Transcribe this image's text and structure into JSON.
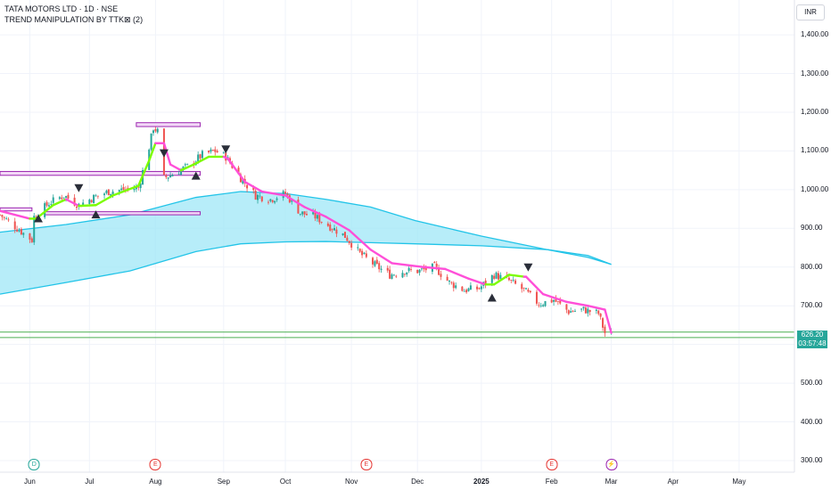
{
  "header": {
    "symbol_line": "TATA MOTORS LTD · 1D · NSE",
    "indicator_line": "TREND MANIPULATION BY TTK⊠ (2)"
  },
  "currency_button": "INR",
  "price_tag": {
    "price": "626.20",
    "countdown": "03:57:48"
  },
  "colors": {
    "up_candle": "#26a69a",
    "down_candle": "#ef5350",
    "trend_up": "#7cfc00",
    "trend_down": "#ff4fd8",
    "cloud_fill": "#9fe7f7",
    "cloud_line": "#22c4e8",
    "box_border": "#9c27b0",
    "support_line": "#4caf50"
  },
  "event_markers": [
    {
      "letter": "D",
      "x": "2024-06-05",
      "color": "#26a69a"
    },
    {
      "letter": "E",
      "x": "2024-08-01",
      "color": "#e53935"
    },
    {
      "letter": "E",
      "x": "2024-11-08",
      "color": "#e53935"
    },
    {
      "letter": "E",
      "x": "2025-02-03",
      "color": "#e53935"
    },
    {
      "letter": "⚡",
      "x": "2025-03-03",
      "color": "#9c27b0"
    }
  ],
  "chart_data": {
    "type": "candlestick",
    "title": "TATA MOTORS LTD · 1D · NSE",
    "ylim": [
      270,
      1490
    ],
    "y_ticks": [
      "300.00",
      "400.00",
      "500.00",
      "600.00",
      "700.00",
      "800.00",
      "900.00",
      "1,000.00",
      "1,100.00",
      "1,200.00",
      "1,300.00",
      "1,400.00"
    ],
    "x_ticks": [
      {
        "label": "Jun",
        "x": "2024-06-03"
      },
      {
        "label": "Jul",
        "x": "2024-07-01"
      },
      {
        "label": "Aug",
        "x": "2024-08-01"
      },
      {
        "label": "Sep",
        "x": "2024-09-02"
      },
      {
        "label": "Oct",
        "x": "2024-10-01"
      },
      {
        "label": "Nov",
        "x": "2024-11-01"
      },
      {
        "label": "Dec",
        "x": "2024-12-02"
      },
      {
        "label": "2025",
        "x": "2025-01-01",
        "bold": true
      },
      {
        "label": "Feb",
        "x": "2025-02-03"
      },
      {
        "label": "Mar",
        "x": "2025-03-03"
      },
      {
        "label": "Apr",
        "x": "2025-04-01"
      },
      {
        "label": "May",
        "x": "2025-05-02"
      }
    ],
    "x_range": [
      "2024-05-20",
      "2025-05-28"
    ],
    "price_anchors": [
      [
        "2024-05-20",
        935
      ],
      [
        "2024-06-04",
        870
      ],
      [
        "2024-06-05",
        930
      ],
      [
        "2024-06-12",
        965
      ],
      [
        "2024-06-19",
        985
      ],
      [
        "2024-06-26",
        960
      ],
      [
        "2024-07-03",
        980
      ],
      [
        "2024-07-10",
        995
      ],
      [
        "2024-07-17",
        1000
      ],
      [
        "2024-07-24",
        1005
      ],
      [
        "2024-07-29",
        1110
      ],
      [
        "2024-07-31",
        1160
      ],
      [
        "2024-08-02",
        1150
      ],
      [
        "2024-08-05",
        1030
      ],
      [
        "2024-08-09",
        1040
      ],
      [
        "2024-08-16",
        1060
      ],
      [
        "2024-08-23",
        1090
      ],
      [
        "2024-08-29",
        1100
      ],
      [
        "2024-09-03",
        1085
      ],
      [
        "2024-09-10",
        1030
      ],
      [
        "2024-09-17",
        985
      ],
      [
        "2024-09-24",
        975
      ],
      [
        "2024-10-01",
        990
      ],
      [
        "2024-10-08",
        940
      ],
      [
        "2024-10-15",
        930
      ],
      [
        "2024-10-22",
        905
      ],
      [
        "2024-10-29",
        880
      ],
      [
        "2024-11-05",
        835
      ],
      [
        "2024-11-12",
        805
      ],
      [
        "2024-11-19",
        780
      ],
      [
        "2024-11-26",
        790
      ],
      [
        "2024-12-03",
        790
      ],
      [
        "2024-12-10",
        800
      ],
      [
        "2024-12-17",
        760
      ],
      [
        "2024-12-24",
        740
      ],
      [
        "2024-12-31",
        745
      ],
      [
        "2025-01-07",
        780
      ],
      [
        "2025-01-14",
        765
      ],
      [
        "2025-01-21",
        740
      ],
      [
        "2025-01-28",
        705
      ],
      [
        "2025-02-04",
        715
      ],
      [
        "2025-02-11",
        685
      ],
      [
        "2025-02-18",
        690
      ],
      [
        "2025-02-25",
        680
      ],
      [
        "2025-02-28",
        630
      ],
      [
        "2025-03-03",
        626
      ]
    ],
    "cloud_upper": [
      [
        "2024-05-20",
        890
      ],
      [
        "2024-06-20",
        910
      ],
      [
        "2024-07-20",
        935
      ],
      [
        "2024-08-20",
        980
      ],
      [
        "2024-09-10",
        995
      ],
      [
        "2024-10-01",
        990
      ],
      [
        "2024-10-20",
        975
      ],
      [
        "2024-11-10",
        955
      ],
      [
        "2024-12-01",
        920
      ],
      [
        "2025-01-01",
        880
      ],
      [
        "2025-02-01",
        845
      ],
      [
        "2025-02-20",
        830
      ],
      [
        "2025-03-03",
        807
      ]
    ],
    "cloud_lower": [
      [
        "2024-05-20",
        730
      ],
      [
        "2024-06-20",
        760
      ],
      [
        "2024-07-20",
        790
      ],
      [
        "2024-08-20",
        840
      ],
      [
        "2024-09-10",
        860
      ],
      [
        "2024-10-01",
        865
      ],
      [
        "2024-10-20",
        866
      ],
      [
        "2024-11-10",
        863
      ],
      [
        "2024-12-01",
        860
      ],
      [
        "2025-01-01",
        855
      ],
      [
        "2025-02-01",
        845
      ],
      [
        "2025-02-20",
        825
      ],
      [
        "2025-03-03",
        807
      ]
    ],
    "trend_line": [
      [
        "2024-05-20",
        945,
        "down"
      ],
      [
        "2024-06-03",
        925,
        "down"
      ],
      [
        "2024-06-06",
        925,
        "up"
      ],
      [
        "2024-06-14",
        960,
        "up"
      ],
      [
        "2024-06-20",
        975,
        "up"
      ],
      [
        "2024-06-26",
        958,
        "down"
      ],
      [
        "2024-07-04",
        960,
        "up"
      ],
      [
        "2024-07-12",
        985,
        "up"
      ],
      [
        "2024-07-24",
        1010,
        "up"
      ],
      [
        "2024-07-29",
        1075,
        "up"
      ],
      [
        "2024-08-01",
        1120,
        "up"
      ],
      [
        "2024-08-05",
        1120,
        "down"
      ],
      [
        "2024-08-08",
        1065,
        "down"
      ],
      [
        "2024-08-13",
        1050,
        "down"
      ],
      [
        "2024-08-19",
        1065,
        "up"
      ],
      [
        "2024-08-26",
        1085,
        "up"
      ],
      [
        "2024-09-02",
        1085,
        "up"
      ],
      [
        "2024-09-04",
        1080,
        "down"
      ],
      [
        "2024-09-12",
        1020,
        "down"
      ],
      [
        "2024-09-20",
        995,
        "down"
      ],
      [
        "2024-10-01",
        985,
        "down"
      ],
      [
        "2024-10-10",
        955,
        "down"
      ],
      [
        "2024-10-20",
        930,
        "down"
      ],
      [
        "2024-10-31",
        895,
        "down"
      ],
      [
        "2024-11-10",
        845,
        "down"
      ],
      [
        "2024-11-20",
        810,
        "down"
      ],
      [
        "2024-12-05",
        800,
        "down"
      ],
      [
        "2024-12-15",
        795,
        "down"
      ],
      [
        "2024-12-26",
        770,
        "down"
      ],
      [
        "2025-01-03",
        755,
        "down"
      ],
      [
        "2025-01-07",
        755,
        "up"
      ],
      [
        "2025-01-14",
        780,
        "up"
      ],
      [
        "2025-01-21",
        775,
        "up"
      ],
      [
        "2025-01-22",
        775,
        "down"
      ],
      [
        "2025-01-30",
        730,
        "down"
      ],
      [
        "2025-02-10",
        710,
        "down"
      ],
      [
        "2025-02-20",
        700,
        "down"
      ],
      [
        "2025-02-28",
        690,
        "down"
      ],
      [
        "2025-03-03",
        630,
        "down"
      ]
    ],
    "signals": [
      {
        "type": "buy",
        "x": "2024-06-07",
        "y": 925
      },
      {
        "type": "sell",
        "x": "2024-06-26",
        "y": 1005
      },
      {
        "type": "buy",
        "x": "2024-07-04",
        "y": 935
      },
      {
        "type": "sell",
        "x": "2024-08-05",
        "y": 1095
      },
      {
        "type": "buy",
        "x": "2024-08-20",
        "y": 1035
      },
      {
        "type": "sell",
        "x": "2024-09-03",
        "y": 1105
      },
      {
        "type": "buy",
        "x": "2025-01-06",
        "y": 720
      },
      {
        "type": "sell",
        "x": "2025-01-23",
        "y": 800
      }
    ],
    "zones": [
      {
        "from": "2024-07-23",
        "to": "2024-08-22",
        "low": 1163,
        "high": 1173
      },
      {
        "from": "2024-05-20",
        "to": "2024-08-22",
        "low": 1037,
        "high": 1047
      },
      {
        "from": "2024-05-20",
        "to": "2024-06-04",
        "low": 945,
        "high": 953
      },
      {
        "from": "2024-06-10",
        "to": "2024-08-22",
        "low": 935,
        "high": 943
      }
    ],
    "support_lines": [
      618,
      632
    ],
    "last_price": 626.2
  }
}
